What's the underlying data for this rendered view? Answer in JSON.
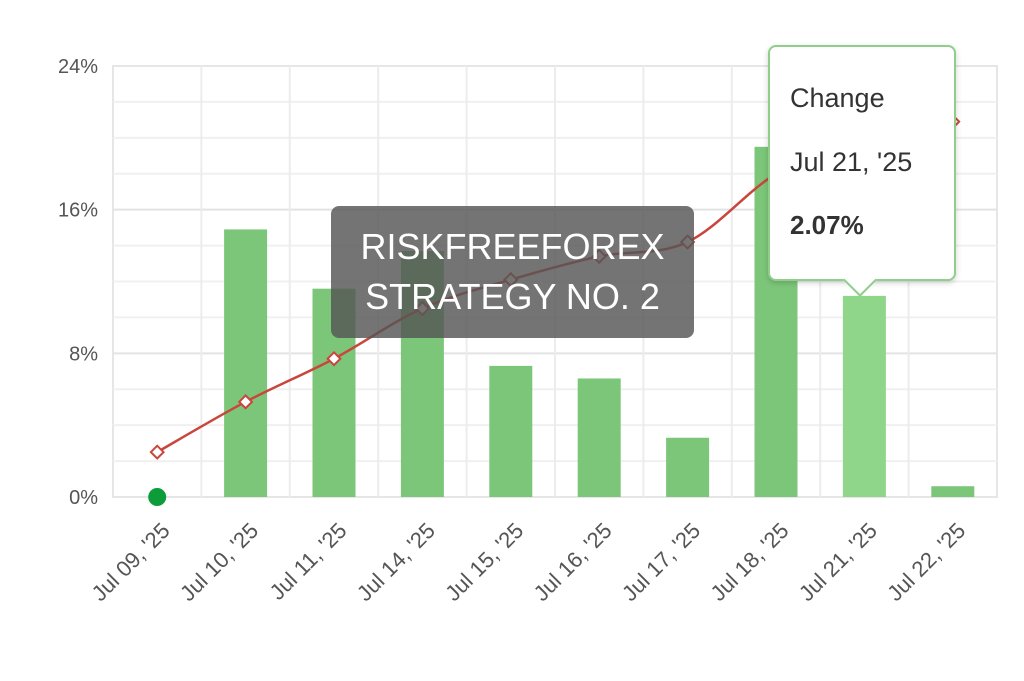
{
  "chart_data": {
    "type": "bar",
    "title": "",
    "xlabel": "",
    "ylabel": "",
    "categories": [
      "Jul 09, '25",
      "Jul 10, '25",
      "Jul 11, '25",
      "Jul 14, '25",
      "Jul 15, '25",
      "Jul 16, '25",
      "Jul 17, '25",
      "Jul 18, '25",
      "Jul 21, '25",
      "Jul 22, '25"
    ],
    "series": [
      {
        "type": "bar",
        "values": [
          0,
          14.9,
          11.6,
          13.7,
          7.3,
          6.6,
          3.3,
          19.5,
          11.2,
          0.6
        ],
        "color": "#7cc67a"
      },
      {
        "type": "line",
        "values": [
          2.5,
          5.3,
          7.7,
          10.5,
          12.1,
          13.4,
          14.2,
          18.0,
          20.1,
          20.9
        ],
        "color": "#c9463d"
      }
    ],
    "ylim": [
      0,
      24
    ],
    "yticks": [
      "0%",
      "8%",
      "16%",
      "24%"
    ],
    "ytick_values": [
      0,
      8,
      16,
      24
    ],
    "grid": true,
    "highlight_index": 8,
    "highlight_color": "#8fd68a",
    "start_marker_color": "#0c9c3a"
  },
  "watermark": {
    "line1": "RISKFREEFOREX",
    "line2": "STRATEGY NO. 2"
  },
  "tooltip": {
    "title": "Change",
    "date": "Jul 21, '25",
    "value": "2.07%"
  }
}
